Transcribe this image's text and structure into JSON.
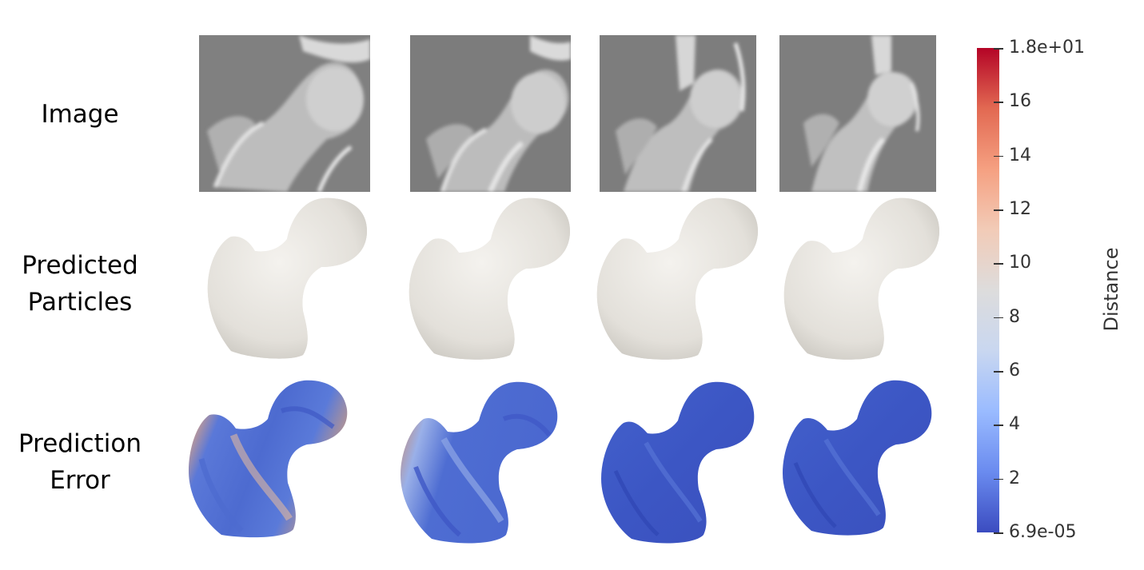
{
  "rows": [
    {
      "label_lines": [
        "Image"
      ]
    },
    {
      "label_lines": [
        "Predicted",
        "Particles"
      ]
    },
    {
      "label_lines": [
        "Prediction",
        "Error"
      ]
    }
  ],
  "colorbar": {
    "title": "Distance",
    "max_label": "1.8e+01",
    "min_label": "6.9e-05",
    "ticks": [
      "16",
      "14",
      "12",
      "10",
      "8",
      "6",
      "4",
      "2"
    ],
    "gradient_colors": [
      "#3b4cc0",
      "#6a8bef",
      "#9abbff",
      "#c9d7f0",
      "#dddcdc",
      "#f2cbb7",
      "#f5a081",
      "#e26952",
      "#b40426"
    ]
  },
  "error_levels": [
    "high",
    "medium",
    "low",
    "low"
  ]
}
